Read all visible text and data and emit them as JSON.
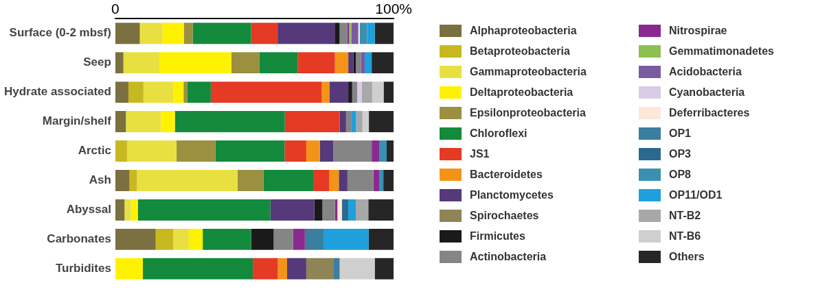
{
  "chart_data": {
    "type": "bar",
    "orientation": "horizontal",
    "stacked": true,
    "grid": false,
    "legend": "right",
    "categories": [
      "Surface (0-2 mbsf)",
      "Seep",
      "Hydrate associated",
      "Margin/shelf",
      "Arctic",
      "Ash",
      "Abyssal",
      "Carbonates",
      "Turbidites"
    ],
    "xlim": [
      0,
      100
    ],
    "xticks": [
      {
        "value": 0,
        "label": "0"
      },
      {
        "value": 100,
        "label": "100%"
      }
    ],
    "series": [
      {
        "name": "Alphaproteobacteria",
        "color": "#7a7040",
        "values": [
          8.8,
          2.9,
          4.7,
          3.8,
          0,
          5.1,
          3.3,
          14.5,
          0
        ]
      },
      {
        "name": "Betaproteobacteria",
        "color": "#c8b820",
        "values": [
          0,
          0,
          5.4,
          0,
          4.2,
          2.7,
          0,
          6.3,
          0
        ]
      },
      {
        "name": "Gammaproteobacteria",
        "color": "#e8e040",
        "values": [
          8.1,
          13.1,
          10.8,
          12.6,
          17.8,
          36.1,
          2.3,
          5.6,
          0
        ]
      },
      {
        "name": "Deltaproteobacteria",
        "color": "#fff200",
        "values": [
          7.7,
          25.7,
          3.6,
          5.0,
          0,
          0,
          2.5,
          5.0,
          9.9
        ]
      },
      {
        "name": "Epsilonproteobacteria",
        "color": "#9a9040",
        "values": [
          3.2,
          10.1,
          1.4,
          0,
          14.0,
          9.3,
          0,
          0,
          0
        ]
      },
      {
        "name": "Chloroflexi",
        "color": "#138a3c",
        "values": [
          21.0,
          13.8,
          8.4,
          39.5,
          24.8,
          17.9,
          47.6,
          17.4,
          39.5
        ]
      },
      {
        "name": "JS1",
        "color": "#e53a24",
        "values": [
          9.5,
          13.3,
          39.9,
          19.7,
          7.8,
          5.8,
          0,
          0,
          9.0
        ]
      },
      {
        "name": "Bacteroidetes",
        "color": "#f39419",
        "values": [
          0,
          4.8,
          2.7,
          0,
          4.9,
          3.4,
          0,
          0,
          3.3
        ]
      },
      {
        "name": "Planctomycetes",
        "color": "#55397a",
        "values": [
          20.5,
          1.8,
          6.8,
          2.3,
          4.8,
          3.1,
          15.8,
          0,
          6.9
        ]
      },
      {
        "name": "Spirochaetes",
        "color": "#8e8456",
        "values": [
          0,
          0,
          0,
          0,
          0,
          0,
          0,
          0,
          9.7
        ]
      },
      {
        "name": "Firmicutes",
        "color": "#1a1a1a",
        "values": [
          1.8,
          0.9,
          1.4,
          0,
          0,
          0,
          2.9,
          8.1,
          0
        ]
      },
      {
        "name": "Actinobacteria",
        "color": "#858585",
        "values": [
          2.7,
          1.8,
          1.8,
          1.8,
          13.8,
          9.3,
          4.5,
          7.0,
          0
        ]
      },
      {
        "name": "Nitrospirae",
        "color": "#8a2a90",
        "values": [
          0.7,
          0,
          0,
          0,
          2.7,
          2.1,
          0.9,
          4.2,
          0
        ]
      },
      {
        "name": "Gemmatimonadetes",
        "color": "#8cc050",
        "values": [
          0.9,
          0,
          0,
          0,
          0,
          0,
          0,
          0,
          0
        ]
      },
      {
        "name": "Acidobacteria",
        "color": "#7a5aa0",
        "values": [
          2.4,
          1.4,
          0,
          0,
          0,
          0,
          0,
          0,
          0
        ]
      },
      {
        "name": "Cyanobacteria",
        "color": "#d8cce6",
        "values": [
          0,
          0,
          1.6,
          0,
          0,
          0,
          0,
          0,
          0
        ]
      },
      {
        "name": "Deferribacteres",
        "color": "#fde8d8",
        "values": [
          0.5,
          0,
          0,
          0,
          0,
          0,
          1.6,
          0,
          0
        ]
      },
      {
        "name": "OP1",
        "color": "#3a7ea0",
        "values": [
          0,
          0,
          0,
          0,
          0,
          0,
          0,
          6.9,
          2.3
        ]
      },
      {
        "name": "OP3",
        "color": "#2a6a90",
        "values": [
          0,
          0,
          0,
          0,
          0,
          0,
          2.3,
          0,
          0
        ]
      },
      {
        "name": "OP8",
        "color": "#3a90b0",
        "values": [
          2.7,
          0,
          0,
          0,
          2.7,
          1.5,
          0,
          0,
          0
        ]
      },
      {
        "name": "OP11/OD1",
        "color": "#1ea0dc",
        "values": [
          2.7,
          2.5,
          0,
          1.8,
          0,
          0,
          2.7,
          16.0,
          0
        ]
      },
      {
        "name": "NT-B2",
        "color": "#a8a8a8",
        "values": [
          0,
          0,
          3.8,
          2.3,
          0,
          0,
          4.5,
          0,
          0
        ]
      },
      {
        "name": "NT-B6",
        "color": "#cfcfcf",
        "values": [
          0,
          0,
          4.1,
          2.3,
          0,
          0,
          0,
          0,
          12.6
        ]
      },
      {
        "name": "Others",
        "color": "#262626",
        "values": [
          6.8,
          7.9,
          3.6,
          8.9,
          2.5,
          3.7,
          9.1,
          9.0,
          6.8
        ]
      }
    ]
  }
}
